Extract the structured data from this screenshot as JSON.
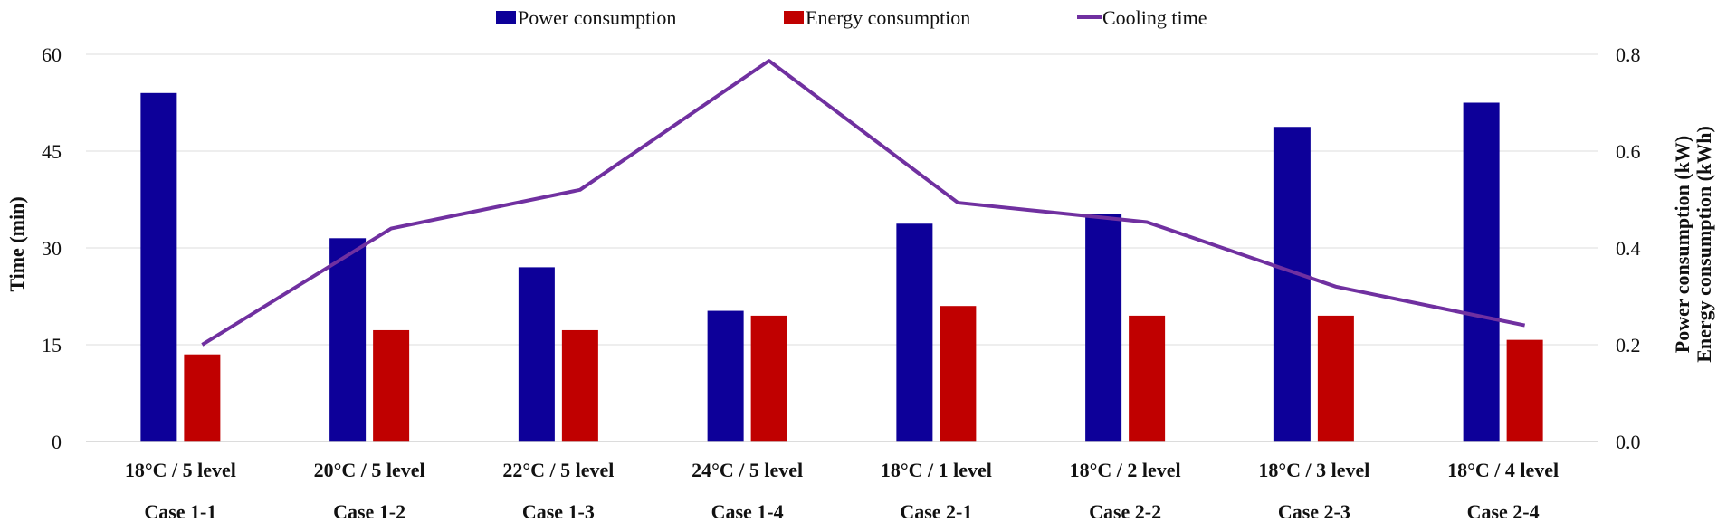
{
  "chart_data": {
    "type": "bar",
    "categories": [
      "18°C / 5 level",
      "20°C / 5 level",
      "22°C / 5 level",
      "24°C / 5 level",
      "18°C / 1 level",
      "18°C / 2 level",
      "18°C / 3 level",
      "18°C / 4 level"
    ],
    "case_labels": [
      "Case 1-1",
      "Case 1-2",
      "Case 1-3",
      "Case 1-4",
      "Case 2-1",
      "Case 2-2",
      "Case 2-3",
      "Case 2-4"
    ],
    "series": [
      {
        "name": "Power consumption",
        "type": "bar",
        "axis": "right",
        "color": "#0d0099",
        "values": [
          0.72,
          0.42,
          0.36,
          0.27,
          0.45,
          0.47,
          0.65,
          0.7
        ]
      },
      {
        "name": "Energy consumption",
        "type": "bar",
        "axis": "right",
        "color": "#c00000",
        "values": [
          0.18,
          0.23,
          0.23,
          0.26,
          0.28,
          0.26,
          0.26,
          0.21
        ]
      },
      {
        "name": "Cooling time",
        "type": "line",
        "axis": "left",
        "color": "#7030a0",
        "values": [
          15,
          33,
          39,
          59,
          37,
          34,
          24,
          18
        ]
      }
    ],
    "left_axis": {
      "label": "Time (min)",
      "min": 0,
      "max": 60,
      "ticks": [
        "0",
        "15",
        "30",
        "45",
        "60"
      ]
    },
    "right_axis": {
      "label_line1": "Power consumption (kW)",
      "label_line2": "Energy consumption (kWh)",
      "min": 0,
      "max": 0.8,
      "ticks": [
        "0.0",
        "0.2",
        "0.4",
        "0.6",
        "0.8"
      ]
    },
    "legend_position": "top-center",
    "grid": true
  }
}
